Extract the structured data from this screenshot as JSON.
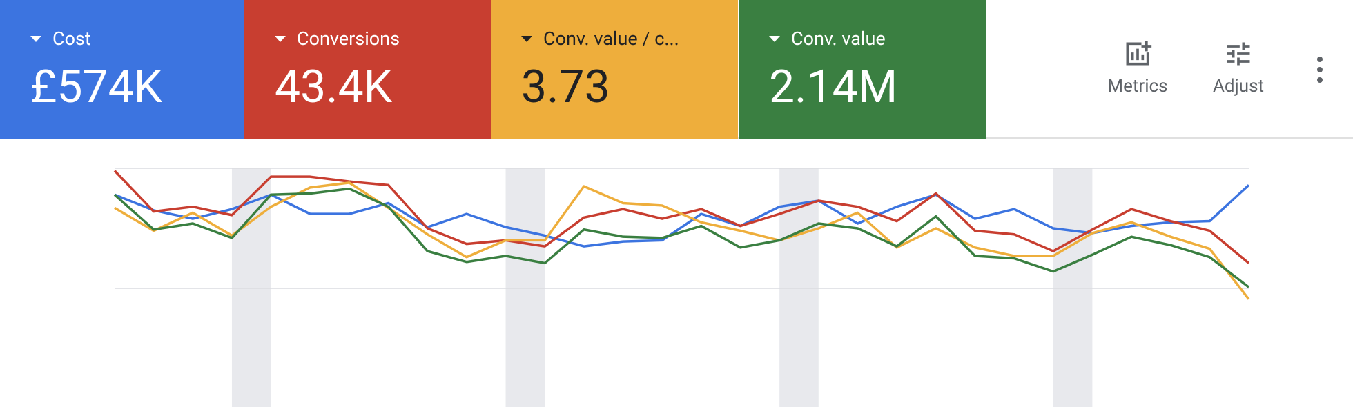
{
  "metrics": [
    {
      "label": "Cost",
      "value": "£574K",
      "color": "#3c74e0",
      "text_color": "#ffffff"
    },
    {
      "label": "Conversions",
      "value": "43.4K",
      "color": "#c83e30",
      "text_color": "#ffffff"
    },
    {
      "label": "Conv. value / c...",
      "value": "3.73",
      "color": "#eeae3c",
      "text_color": "#202124"
    },
    {
      "label": "Conv. value",
      "value": "2.14M",
      "color": "#3a7f41",
      "text_color": "#ffffff"
    }
  ],
  "toolbar": {
    "metrics": "Metrics",
    "adjust": "Adjust"
  },
  "chart_data": {
    "type": "line",
    "x": [
      null,
      null,
      null,
      null,
      null,
      null,
      null,
      null,
      null,
      null,
      null,
      null,
      null,
      null,
      null,
      null,
      null,
      null,
      null,
      null,
      null,
      null,
      null,
      null,
      null,
      null,
      null,
      null,
      null,
      null
    ],
    "ylim": [
      -100,
      100
    ],
    "yticks": [
      0,
      100
    ],
    "grid": true,
    "series": [
      {
        "color": "#3c74e0",
        "values": [
          78,
          65,
          58,
          66,
          78,
          62,
          62,
          71,
          51,
          62,
          51,
          44,
          35,
          39,
          40,
          62,
          52,
          68,
          73,
          54,
          68,
          78,
          58,
          66,
          50,
          46,
          52,
          55,
          56,
          86
        ]
      },
      {
        "color": "#c83e30",
        "values": [
          98,
          64,
          68,
          61,
          93,
          93,
          89,
          86,
          50,
          37,
          40,
          35,
          59,
          66,
          58,
          66,
          52,
          62,
          73,
          68,
          56,
          79,
          48,
          45,
          31,
          49,
          66,
          56,
          48,
          21
        ]
      },
      {
        "color": "#eeae3c",
        "values": [
          67,
          48,
          63,
          44,
          68,
          84,
          88,
          67,
          45,
          26,
          40,
          40,
          85,
          71,
          69,
          55,
          48,
          40,
          50,
          63,
          34,
          50,
          34,
          27,
          27,
          46,
          55,
          43,
          33,
          -9
        ]
      },
      {
        "color": "#3a7f41",
        "values": [
          78,
          49,
          54,
          42,
          78,
          79,
          83,
          68,
          31,
          22,
          27,
          21,
          49,
          43,
          42,
          52,
          34,
          40,
          54,
          50,
          35,
          60,
          27,
          25,
          14,
          28,
          43,
          36,
          26,
          1
        ]
      }
    ]
  }
}
